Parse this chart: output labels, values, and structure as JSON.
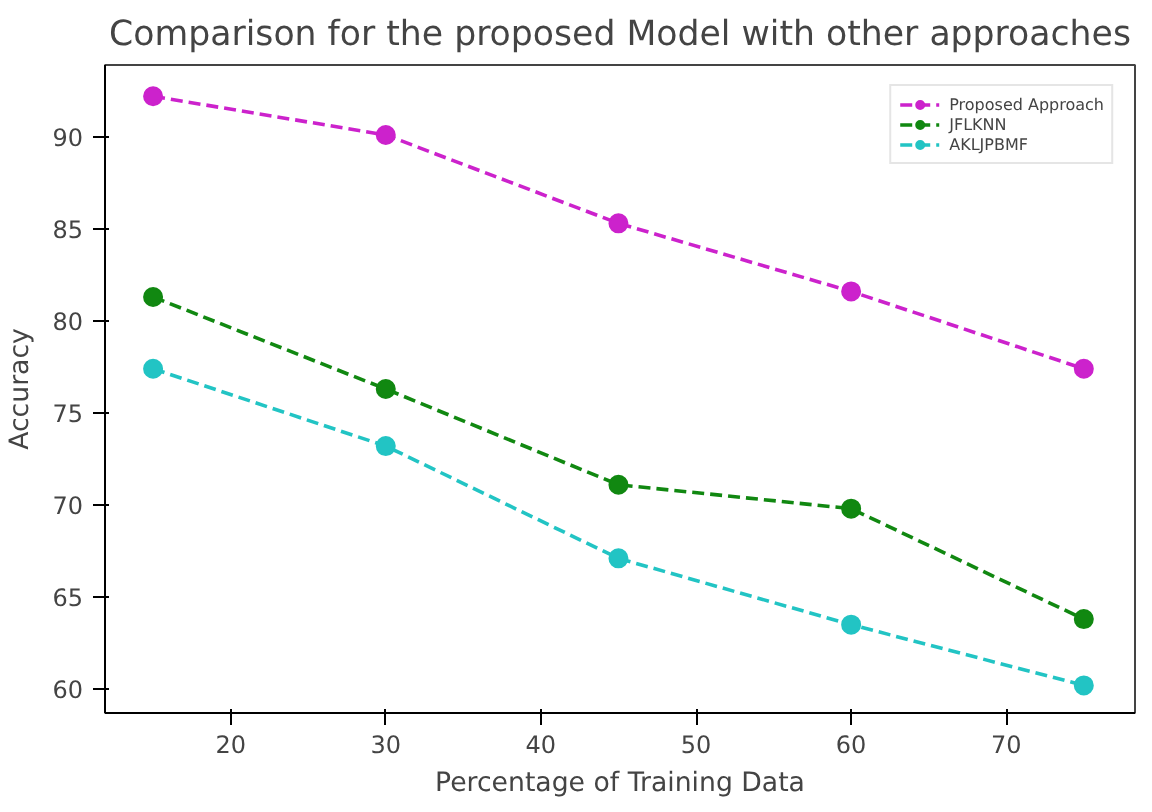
{
  "chart_data": {
    "type": "line",
    "title": "Comparison for the proposed Model with other approaches",
    "xlabel": "Percentage of Training Data",
    "ylabel": "Accuracy",
    "x": [
      15,
      30,
      45,
      60,
      75
    ],
    "series": [
      {
        "name": "Proposed Approach",
        "color": "#cc22cc",
        "values": [
          92.2,
          90.1,
          85.3,
          81.6,
          77.4
        ]
      },
      {
        "name": "JFLKNN",
        "color": "#118811",
        "values": [
          81.3,
          76.3,
          71.1,
          69.8,
          63.8
        ]
      },
      {
        "name": "AKLJPBMF",
        "color": "#22c4c4",
        "values": [
          77.4,
          73.2,
          67.1,
          63.5,
          60.2
        ]
      }
    ],
    "xlim": [
      11.9,
      78.3
    ],
    "ylim": [
      58.7,
      93.9
    ],
    "xticks": [
      20,
      30,
      40,
      50,
      60,
      70
    ],
    "yticks": [
      60,
      65,
      70,
      75,
      80,
      85,
      90
    ],
    "legend": "top right",
    "marker": "circle",
    "line_style": "dashed",
    "grid": false
  }
}
